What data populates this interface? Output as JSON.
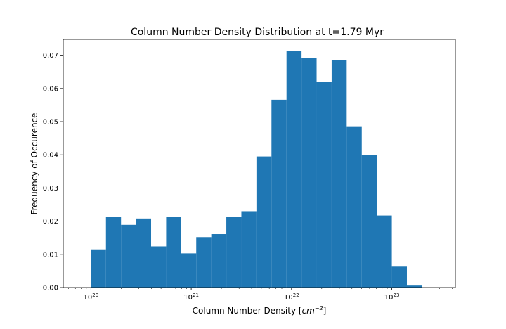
{
  "chart_data": {
    "type": "bar",
    "title": "Column Number Density Distribution at t=1.79 Myr",
    "xlabel": "Column Number Density [",
    "xlabel_math": "cm",
    "xlabel_exp": "−2",
    "xlabel_close": "]",
    "ylabel": "Frequency of Occurence",
    "x_scale": "log",
    "xlim": [
      5.3e+19,
      4.3e+23
    ],
    "ylim": [
      0,
      0.0748
    ],
    "x_ticks": [
      {
        "value": 1e+20,
        "base": "10",
        "exp": "20"
      },
      {
        "value": 1e+21,
        "base": "10",
        "exp": "21"
      },
      {
        "value": 1e+22,
        "base": "10",
        "exp": "22"
      },
      {
        "value": 1e+23,
        "base": "10",
        "exp": "23"
      }
    ],
    "y_ticks": [
      {
        "value": 0.0,
        "label": "0.00"
      },
      {
        "value": 0.01,
        "label": "0.01"
      },
      {
        "value": 0.02,
        "label": "0.02"
      },
      {
        "value": 0.03,
        "label": "0.03"
      },
      {
        "value": 0.04,
        "label": "0.04"
      },
      {
        "value": 0.05,
        "label": "0.05"
      },
      {
        "value": 0.06,
        "label": "0.06"
      },
      {
        "value": 0.07,
        "label": "0.07"
      }
    ],
    "bin_edges_log10": [
      20.0,
      20.15,
      20.3,
      20.45,
      20.6,
      20.75,
      20.9,
      21.05,
      21.2,
      21.35,
      21.5,
      21.65,
      21.8,
      21.95,
      22.1,
      22.25,
      22.4,
      22.55,
      22.7,
      22.85,
      23.0,
      23.15,
      23.3
    ],
    "values": [
      0.0115,
      0.0212,
      0.0189,
      0.0208,
      0.0124,
      0.0212,
      0.0103,
      0.0152,
      0.0161,
      0.0212,
      0.023,
      0.0395,
      0.0566,
      0.0713,
      0.0692,
      0.062,
      0.0685,
      0.0486,
      0.0399,
      0.0217,
      0.0063,
      0.0006
    ],
    "bar_color": "#1f77b4",
    "grid": false,
    "legend": "none"
  }
}
